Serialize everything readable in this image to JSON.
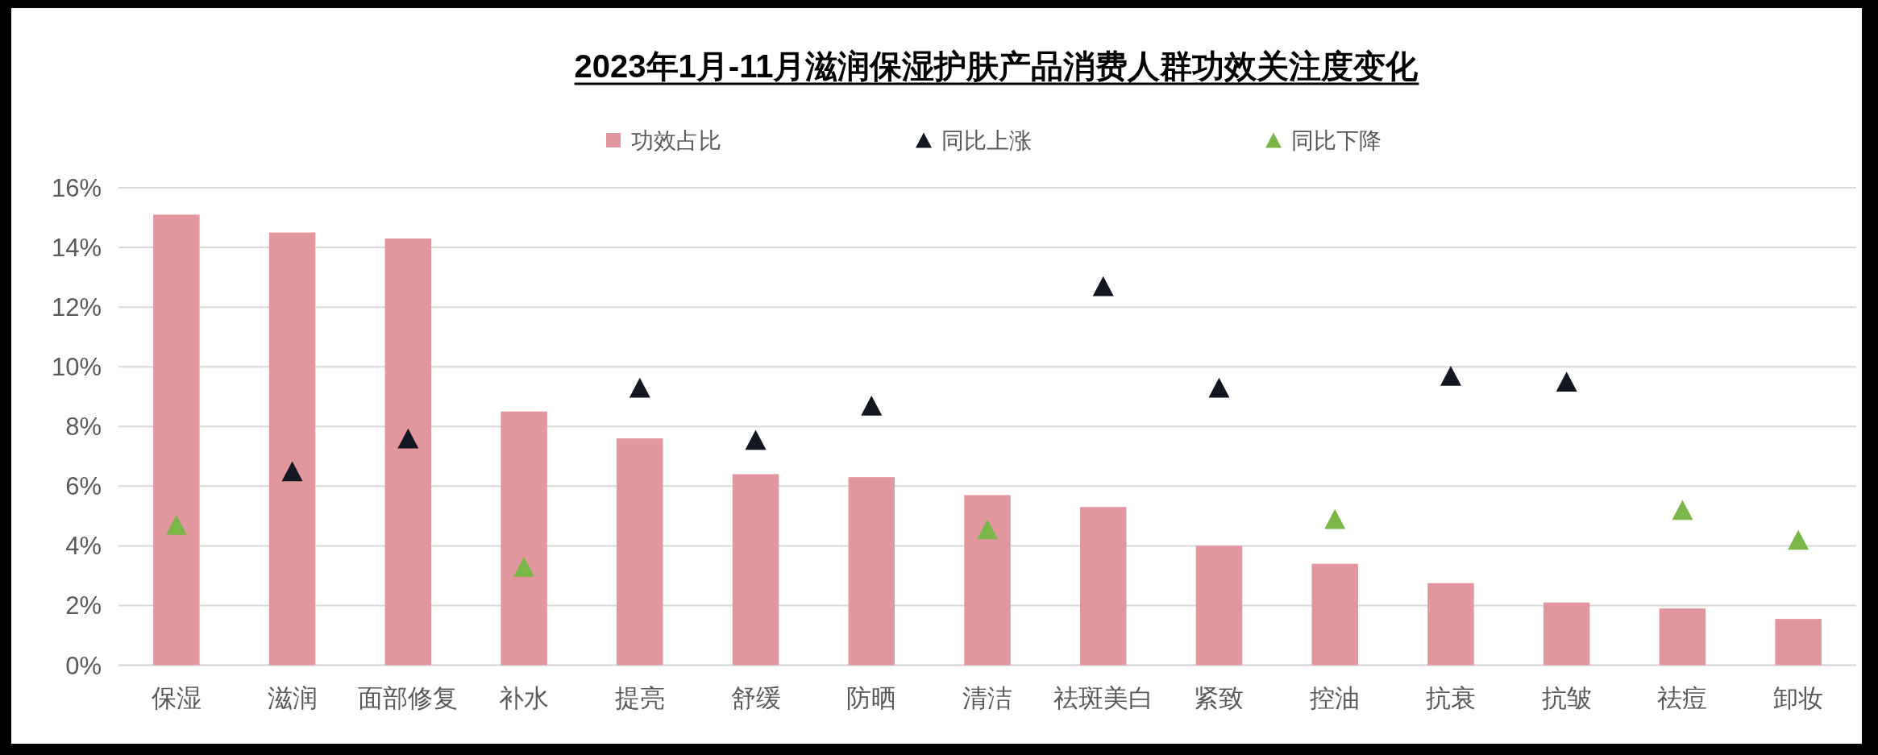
{
  "chart_data": {
    "type": "bar",
    "title": "2023年1月-11月滋润保湿护肤产品消费人群功效关注度变化",
    "categories": [
      "保湿",
      "滋润",
      "面部修复",
      "补水",
      "提亮",
      "舒缓",
      "防晒",
      "清洁",
      "祛斑美白",
      "紧致",
      "控油",
      "抗衰",
      "抗皱",
      "祛痘",
      "卸妆"
    ],
    "series": [
      {
        "name": "功效占比",
        "color": "#e2979f",
        "values": [
          15.1,
          14.5,
          14.3,
          8.5,
          7.6,
          6.4,
          6.3,
          5.7,
          5.3,
          4.0,
          3.4,
          2.75,
          2.1,
          1.9,
          1.55
        ]
      },
      {
        "name": "同比上涨",
        "type": "scatter",
        "color": "#131722",
        "values": [
          null,
          6.5,
          7.6,
          null,
          9.3,
          7.55,
          8.7,
          null,
          12.7,
          9.3,
          null,
          9.7,
          9.5,
          null,
          null
        ]
      },
      {
        "name": "同比下降",
        "type": "scatter",
        "color": "#7ab648",
        "values": [
          4.7,
          null,
          null,
          3.3,
          null,
          null,
          null,
          4.55,
          null,
          null,
          4.9,
          null,
          null,
          5.2,
          4.2
        ]
      }
    ],
    "ylim": [
      0,
      16
    ],
    "yticks": [
      {
        "value": 0,
        "label": "0%"
      },
      {
        "value": 2,
        "label": "2%"
      },
      {
        "value": 4,
        "label": "4%"
      },
      {
        "value": 6,
        "label": "6%"
      },
      {
        "value": 8,
        "label": "8%"
      },
      {
        "value": 10,
        "label": "10%"
      },
      {
        "value": 12,
        "label": "12%"
      },
      {
        "value": 14,
        "label": "14%"
      },
      {
        "value": 16,
        "label": "16%"
      }
    ],
    "grid": "y",
    "legend": "top",
    "marker": "triangle"
  }
}
